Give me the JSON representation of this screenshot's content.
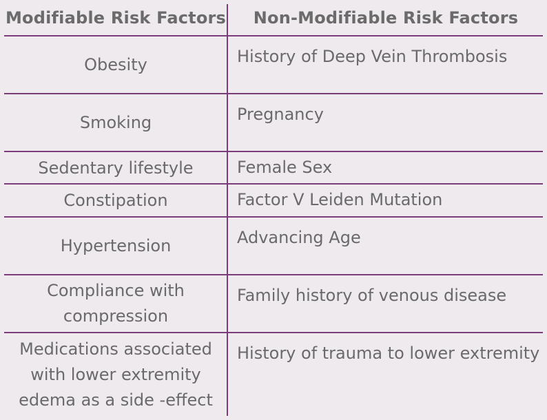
{
  "headers": {
    "modifiable": "Modifiable Risk Factors",
    "non_modifiable": "Non-Modifiable Risk Factors"
  },
  "rows": [
    {
      "modifiable": "Obesity",
      "non_modifiable": "History of Deep Vein Thrombosis"
    },
    {
      "modifiable": "Smoking",
      "non_modifiable": "Pregnancy"
    },
    {
      "modifiable": "Sedentary lifestyle",
      "non_modifiable": "Female Sex"
    },
    {
      "modifiable": "Constipation",
      "non_modifiable": "Factor V Leiden Mutation"
    },
    {
      "modifiable": "Hypertension",
      "non_modifiable": "Advancing Age"
    },
    {
      "modifiable": "Compliance with compression",
      "non_modifiable": "Family history of venous disease"
    },
    {
      "modifiable": "Medications associated with lower extremity edema as a side -effect",
      "non_modifiable": "History of trauma to lower extremity"
    }
  ],
  "colors": {
    "background": "#eeeaee",
    "rule": "#7a3d79",
    "text": "#6a6a6a"
  }
}
